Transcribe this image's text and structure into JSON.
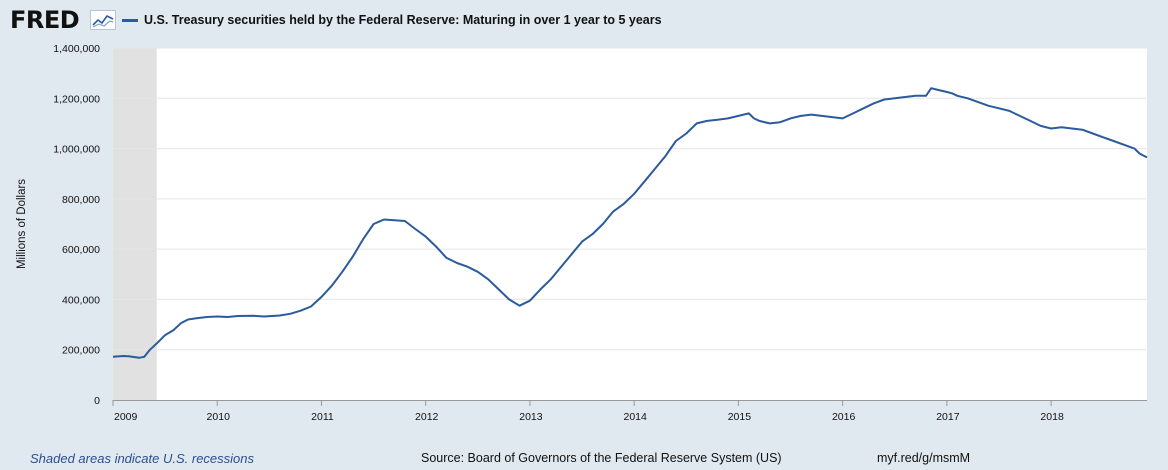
{
  "header": {
    "logo_text": "FRED",
    "legend_label": "U.S. Treasury securities held by the Federal Reserve: Maturing in over 1 year to 5 years",
    "series_color": "#2b5b9c"
  },
  "footer": {
    "recession_note": "Shaded areas indicate U.S. recessions",
    "source": "Source: Board of Governors of the Federal Reserve System (US)",
    "short_link": "myf.red/g/msmM"
  },
  "chart_data": {
    "type": "line",
    "title": "U.S. Treasury securities held by the Federal Reserve: Maturing in over 1 year to 5 years",
    "xlabel": "",
    "ylabel": "Millions of Dollars",
    "xlim": [
      2009.0,
      2018.92
    ],
    "ylim": [
      0,
      1400000
    ],
    "y_ticks": [
      0,
      200000,
      400000,
      600000,
      800000,
      1000000,
      1200000,
      1400000
    ],
    "y_tick_labels": [
      "0",
      "200,000",
      "400,000",
      "600,000",
      "800,000",
      "1,000,000",
      "1,200,000",
      "1,400,000"
    ],
    "x_ticks": [
      2009,
      2010,
      2011,
      2012,
      2013,
      2014,
      2015,
      2016,
      2017,
      2018
    ],
    "x_tick_labels": [
      "2009",
      "2010",
      "2011",
      "2012",
      "2013",
      "2014",
      "2015",
      "2016",
      "2017",
      "2018"
    ],
    "grid": true,
    "recessions": [
      [
        2009.0,
        2009.42
      ]
    ],
    "series": [
      {
        "name": "U.S. Treasury securities held by the Federal Reserve: Maturing in over 1 year to 5 years",
        "color": "#2b5b9c",
        "x": [
          2009.0,
          2009.1,
          2009.15,
          2009.25,
          2009.3,
          2009.35,
          2009.42,
          2009.5,
          2009.58,
          2009.65,
          2009.72,
          2009.8,
          2009.9,
          2010.0,
          2010.1,
          2010.2,
          2010.35,
          2010.45,
          2010.6,
          2010.7,
          2010.8,
          2010.9,
          2011.0,
          2011.1,
          2011.2,
          2011.3,
          2011.4,
          2011.5,
          2011.6,
          2011.7,
          2011.8,
          2011.9,
          2012.0,
          2012.1,
          2012.2,
          2012.3,
          2012.4,
          2012.5,
          2012.6,
          2012.7,
          2012.8,
          2012.9,
          2012.95,
          2013.0,
          2013.1,
          2013.2,
          2013.3,
          2013.4,
          2013.5,
          2013.6,
          2013.7,
          2013.8,
          2013.9,
          2014.0,
          2014.1,
          2014.2,
          2014.3,
          2014.4,
          2014.5,
          2014.6,
          2014.7,
          2014.8,
          2014.9,
          2015.0,
          2015.1,
          2015.15,
          2015.2,
          2015.3,
          2015.4,
          2015.5,
          2015.6,
          2015.7,
          2015.8,
          2015.9,
          2016.0,
          2016.1,
          2016.2,
          2016.3,
          2016.4,
          2016.5,
          2016.6,
          2016.7,
          2016.8,
          2016.85,
          2016.9,
          2017.0,
          2017.05,
          2017.1,
          2017.2,
          2017.3,
          2017.4,
          2017.5,
          2017.6,
          2017.7,
          2017.8,
          2017.9,
          2018.0,
          2018.1,
          2018.2,
          2018.3,
          2018.4,
          2018.5,
          2018.6,
          2018.7,
          2018.8,
          2018.85,
          2018.92
        ],
        "values": [
          172000,
          175000,
          174000,
          168000,
          172000,
          198000,
          225000,
          258000,
          278000,
          305000,
          320000,
          325000,
          330000,
          332000,
          330000,
          334000,
          335000,
          332000,
          336000,
          343000,
          355000,
          372000,
          410000,
          455000,
          510000,
          570000,
          640000,
          700000,
          718000,
          715000,
          712000,
          680000,
          650000,
          610000,
          565000,
          545000,
          530000,
          510000,
          480000,
          440000,
          400000,
          375000,
          385000,
          395000,
          440000,
          480000,
          530000,
          580000,
          630000,
          660000,
          700000,
          750000,
          780000,
          820000,
          870000,
          920000,
          970000,
          1030000,
          1060000,
          1100000,
          1110000,
          1115000,
          1120000,
          1130000,
          1140000,
          1120000,
          1110000,
          1100000,
          1105000,
          1120000,
          1130000,
          1135000,
          1130000,
          1125000,
          1120000,
          1140000,
          1160000,
          1180000,
          1195000,
          1200000,
          1205000,
          1210000,
          1210000,
          1240000,
          1235000,
          1225000,
          1220000,
          1210000,
          1200000,
          1185000,
          1170000,
          1160000,
          1150000,
          1130000,
          1110000,
          1090000,
          1080000,
          1085000,
          1080000,
          1075000,
          1060000,
          1045000,
          1030000,
          1015000,
          1000000,
          980000,
          965000
        ]
      }
    ]
  }
}
